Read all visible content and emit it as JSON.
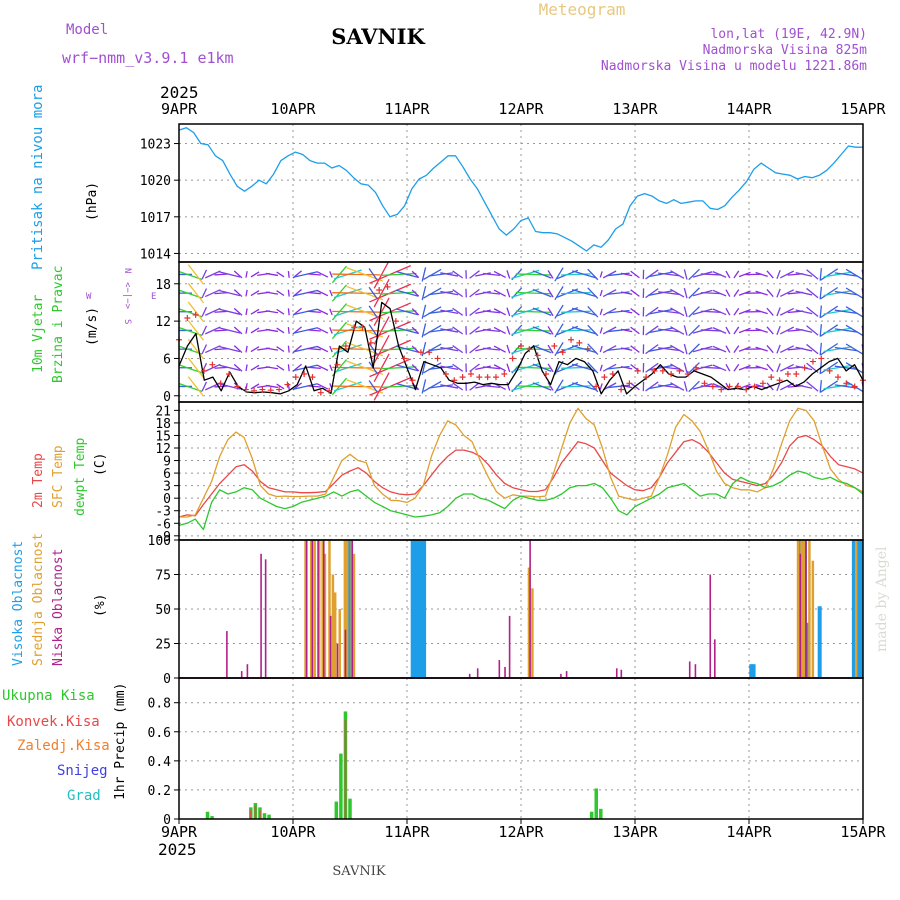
{
  "header": {
    "model_label": "Model",
    "model_value": "wrf−nmm_v3.9.1  e1km",
    "station": "SAVNIK",
    "product": "Meteogram",
    "lonlat": "lon,lat (19E, 42.9N)",
    "elevation": "Nadmorska Visina 825m",
    "model_elevation": "Nadmorska Visina u modelu 1221.86m",
    "year": "2025"
  },
  "footer": {
    "station": "SAVNIK",
    "year": "2025",
    "credit": "made by Angel"
  },
  "colors": {
    "pressure": "#1e9ee8",
    "wind_speed_model": "#000000",
    "wind_gust": "#e53030",
    "temp_2m": "#e84848",
    "temp_sfc": "#e0a030",
    "temp_dew": "#2ec82e",
    "cloud_high": "#1e9ee8",
    "cloud_mid": "#e0a030",
    "cloud_low": "#b0208a",
    "precip_total": "#2ec82e",
    "precip_conv": "#e84848",
    "precip_frz": "#f08030",
    "precip_snow": "#4040e0",
    "precip_grad": "#20c0c0"
  },
  "chart_data": [
    {
      "type": "line",
      "panel": "pressure",
      "ylabel": "Pritisak na nivou mora",
      "unit": "(hPa)",
      "yticks": [
        1014,
        1017,
        1020,
        1023
      ],
      "ylim": [
        1013.3,
        1024.6
      ],
      "series": [
        {
          "values": [
            1024.1,
            1024.3,
            1023.9,
            1023.0,
            1022.9,
            1022.0,
            1021.6,
            1020.5,
            1019.5,
            1019.1,
            1019.5,
            1020.0,
            1019.7,
            1020.5,
            1021.6,
            1022.0,
            1022.3,
            1022.1,
            1021.6,
            1021.4,
            1021.4,
            1021.0,
            1021.2,
            1020.8,
            1020.2,
            1019.7,
            1019.6,
            1019.0,
            1017.9,
            1017.0,
            1017.2,
            1017.9,
            1019.3,
            1020.1,
            1020.4,
            1021.0,
            1021.5,
            1022.0,
            1022.0,
            1021.1,
            1020.1,
            1019.3,
            1018.2,
            1017.1,
            1016.0,
            1015.5,
            1016.0,
            1016.7,
            1016.9,
            1015.8,
            1015.7,
            1015.7,
            1015.6,
            1015.3,
            1015.0,
            1014.6,
            1014.2,
            1014.7,
            1014.5,
            1015.1,
            1016.0,
            1016.4,
            1017.9,
            1018.7,
            1018.9,
            1018.7,
            1018.3,
            1018.1,
            1018.4,
            1018.1,
            1018.2,
            1018.3,
            1018.3,
            1017.7,
            1017.6,
            1017.9,
            1018.6,
            1019.2,
            1019.9,
            1020.9,
            1021.4,
            1021.0,
            1020.6,
            1020.5,
            1020.4,
            1020.1,
            1020.3,
            1020.2,
            1020.4,
            1020.8,
            1021.4,
            1022.1,
            1022.8,
            1022.7,
            1022.7
          ]
        }
      ]
    },
    {
      "type": "line",
      "panel": "wind",
      "ylabel_lines": [
        "10m Vjetar",
        "Brzina i Pravac"
      ],
      "unit": "(m/s)",
      "direction_labels": {
        "n": "N",
        "w": "W",
        "e": "E",
        "s": "S",
        "arrows": "<−|−>"
      },
      "yticks": [
        0,
        6,
        12,
        18
      ],
      "ylim": [
        -1,
        21.5
      ],
      "series": [
        {
          "values": [
            4.8,
            8.0,
            10.0,
            2.5,
            3.0,
            0.8,
            3.8,
            1.5,
            0.6,
            0.5,
            0.6,
            0.5,
            0.3,
            0.8,
            1.8,
            4.8,
            0.8,
            1.2,
            0.4,
            8.0,
            7.0,
            12.0,
            11.0,
            4.5,
            15.0,
            14.0,
            8.0,
            4.5,
            1.0,
            5.5,
            5.0,
            4.5,
            2.5,
            2.0,
            2.0,
            2.2,
            1.8,
            2.0,
            1.8,
            1.8,
            4.0,
            6.8,
            8.0,
            4.0,
            1.8,
            5.5,
            5.0,
            6.0,
            5.5,
            4.0,
            0.3,
            2.5,
            4.0,
            0.3,
            1.5,
            2.5,
            3.5,
            5.0,
            3.5,
            3.0,
            3.0,
            4.0,
            3.5,
            3.0,
            2.0,
            1.0,
            1.2,
            1.0,
            1.5,
            1.0,
            1.5,
            2.0,
            2.5,
            1.5,
            2.2,
            3.5,
            4.5,
            5.5,
            6.0,
            4.0,
            5.0,
            2.5
          ]
        },
        {
          "values": [
            9.0,
            12.5,
            13.0,
            4.0,
            5.0,
            2.0,
            3.5,
            1.5,
            1.0,
            0.8,
            1.0,
            0.9,
            1.0,
            1.8,
            3.0,
            3.5,
            3.0,
            0.5,
            0.8,
            5.0,
            8.0,
            11.0,
            11.0,
            8.5,
            17.0,
            17.5,
            12.0,
            6.0,
            2.5,
            7.0,
            7.0,
            6.0,
            3.5,
            2.5,
            3.0,
            3.5,
            3.0,
            3.0,
            3.0,
            3.5,
            6.0,
            8.0,
            7.5,
            6.5,
            3.5,
            8.0,
            7.0,
            9.0,
            8.5,
            7.5,
            1.5,
            3.0,
            3.5,
            1.0,
            2.0,
            4.0,
            3.0,
            4.0,
            4.0,
            3.5,
            4.0,
            3.5,
            4.5,
            2.0,
            1.5,
            1.0,
            1.5,
            1.5,
            1.0,
            1.5,
            2.0,
            3.0,
            2.5,
            3.5,
            3.5,
            4.5,
            5.5,
            6.0,
            4.0,
            3.0,
            2.0,
            1.5,
            2.5
          ]
        }
      ]
    },
    {
      "type": "line",
      "panel": "temperature",
      "ylabels": [
        "2m Temp",
        "SFC Temp",
        "dewpt Temp"
      ],
      "unit": "(C)",
      "yticks": [
        -9,
        -6,
        -3,
        0,
        3,
        6,
        9,
        12,
        15,
        18,
        21
      ],
      "ylim": [
        -10,
        23
      ],
      "series": [
        {
          "name": "2m Temp",
          "values": [
            -4.5,
            -4.0,
            -4.2,
            -1.5,
            1.0,
            3.5,
            5.5,
            7.5,
            8.0,
            6.5,
            4.0,
            2.5,
            2.0,
            1.5,
            1.5,
            1.3,
            1.3,
            1.4,
            1.6,
            3.5,
            5.5,
            6.5,
            7.3,
            6.0,
            4.0,
            2.5,
            1.5,
            1.0,
            0.8,
            1.0,
            3.0,
            5.5,
            8.0,
            10.0,
            11.5,
            11.5,
            11.0,
            10.0,
            8.0,
            5.5,
            3.5,
            2.5,
            2.0,
            1.6,
            1.6,
            2.0,
            5.0,
            8.5,
            11.0,
            13.5,
            13.0,
            12.0,
            9.0,
            6.0,
            4.5,
            3.0,
            2.0,
            1.8,
            2.5,
            5.0,
            8.5,
            11.0,
            13.5,
            14.0,
            13.0,
            11.0,
            8.5,
            6.0,
            4.5,
            4.0,
            3.5,
            3.0,
            3.5,
            5.5,
            8.5,
            12.5,
            14.5,
            15.0,
            14.0,
            12.5,
            10.0,
            8.0,
            7.5,
            7.0,
            6.0
          ]
        },
        {
          "name": "SFC Temp",
          "values": [
            -4.5,
            -4.5,
            -4.0,
            0.0,
            4.0,
            10.0,
            14.0,
            15.8,
            14.5,
            9.5,
            3.0,
            1.0,
            0.4,
            0.5,
            0.4,
            0.4,
            0.5,
            0.5,
            1.0,
            5.0,
            9.0,
            10.5,
            9.0,
            8.5,
            3.0,
            1.0,
            -0.5,
            -0.6,
            -1.0,
            0.0,
            3.0,
            10.0,
            15.0,
            18.5,
            17.5,
            15.0,
            13.5,
            9.0,
            5.0,
            1.5,
            0.0,
            0.8,
            0.5,
            0.5,
            0.3,
            0.5,
            6.0,
            12.0,
            18.0,
            21.5,
            19.0,
            17.5,
            12.0,
            5.0,
            0.5,
            0.0,
            -0.5,
            0.0,
            0.5,
            5.0,
            10.5,
            17.0,
            20.0,
            18.5,
            16.0,
            11.5,
            6.5,
            3.5,
            2.5,
            2.0,
            2.0,
            1.5,
            2.5,
            7.0,
            13.0,
            18.5,
            21.5,
            21.0,
            18.5,
            12.5,
            7.0,
            4.5,
            3.0,
            2.5,
            1.5
          ]
        },
        {
          "name": "dewpt Temp",
          "values": [
            -6.5,
            -6.0,
            -5.0,
            -7.5,
            -1.0,
            2.0,
            1.0,
            1.5,
            2.5,
            2.0,
            0.0,
            -1.0,
            -2.0,
            -2.5,
            -2.0,
            -1.0,
            -0.5,
            0.0,
            0.5,
            1.5,
            0.5,
            1.5,
            2.0,
            0.5,
            -1.0,
            -2.0,
            -3.0,
            -3.5,
            -4.0,
            -4.5,
            -4.3,
            -4.0,
            -3.5,
            -2.0,
            0.0,
            1.0,
            1.0,
            0.0,
            -0.5,
            -1.5,
            -2.5,
            -0.5,
            0.5,
            0.0,
            -0.5,
            -0.5,
            0.0,
            1.0,
            2.5,
            3.0,
            3.0,
            3.5,
            2.5,
            0.0,
            -3.0,
            -4.0,
            -2.0,
            -1.0,
            0.0,
            1.0,
            2.5,
            3.0,
            3.5,
            2.0,
            0.5,
            1.0,
            1.0,
            0.0,
            3.5,
            5.0,
            4.0,
            3.5,
            2.5,
            3.0,
            4.0,
            5.5,
            6.5,
            6.0,
            5.0,
            4.5,
            5.0,
            4.0,
            3.5,
            2.5,
            1.0
          ]
        }
      ]
    },
    {
      "type": "bar",
      "panel": "clouds",
      "ylabels": [
        "Visoka Oblacnost",
        "Srednja Oblacnost",
        "Niska Oblacnost"
      ],
      "unit": "(%)",
      "yticks": [
        0,
        25,
        50,
        75,
        100
      ],
      "ylim": [
        0,
        100
      ],
      "series": [
        {
          "name": "Visoka Oblacnost",
          "bars": [
            [
              1.485,
              100
            ],
            [
              1.505,
              100
            ],
            [
              2.05,
              100
            ],
            [
              2.07,
              100
            ],
            [
              2.09,
              100
            ],
            [
              2.11,
              100
            ],
            [
              2.13,
              100
            ],
            [
              2.15,
              100
            ],
            [
              5.02,
              10
            ],
            [
              5.04,
              10
            ],
            [
              5.45,
              100
            ],
            [
              5.47,
              55
            ],
            [
              5.49,
              100
            ],
            [
              5.51,
              40
            ],
            [
              5.62,
              52
            ],
            [
              5.92,
              100
            ],
            [
              5.94,
              100
            ],
            [
              5.96,
              100
            ],
            [
              5.98,
              100
            ]
          ]
        },
        {
          "name": "Srednja Oblacnost",
          "bars": [
            [
              1.11,
              100
            ],
            [
              1.16,
              100
            ],
            [
              1.19,
              100
            ],
            [
              1.23,
              100
            ],
            [
              1.26,
              100
            ],
            [
              1.28,
              90
            ],
            [
              1.32,
              100
            ],
            [
              1.35,
              75
            ],
            [
              1.37,
              62
            ],
            [
              1.41,
              50
            ],
            [
              1.455,
              100
            ],
            [
              1.475,
              100
            ],
            [
              1.515,
              100
            ],
            [
              1.535,
              90
            ],
            [
              3.07,
              80
            ],
            [
              3.1,
              65
            ],
            [
              5.43,
              100
            ],
            [
              5.46,
              100
            ],
            [
              5.48,
              100
            ],
            [
              5.53,
              100
            ],
            [
              5.56,
              85
            ],
            [
              5.94,
              100
            ]
          ]
        },
        {
          "name": "Niska Oblacnost",
          "bars": [
            [
              0.42,
              34
            ],
            [
              0.55,
              5
            ],
            [
              0.6,
              10
            ],
            [
              0.72,
              90
            ],
            [
              0.76,
              86
            ],
            [
              1.12,
              100
            ],
            [
              1.17,
              100
            ],
            [
              1.22,
              100
            ],
            [
              1.27,
              100
            ],
            [
              1.33,
              45
            ],
            [
              1.39,
              25
            ],
            [
              1.46,
              35
            ],
            [
              1.52,
              100
            ],
            [
              2.55,
              3
            ],
            [
              2.62,
              7
            ],
            [
              2.81,
              13
            ],
            [
              2.86,
              8
            ],
            [
              2.9,
              45
            ],
            [
              3.08,
              100
            ],
            [
              3.35,
              3
            ],
            [
              3.4,
              5
            ],
            [
              3.84,
              7
            ],
            [
              3.88,
              6
            ],
            [
              4.48,
              12
            ],
            [
              4.53,
              10
            ],
            [
              4.66,
              75
            ],
            [
              4.7,
              28
            ],
            [
              5.45,
              90
            ],
            [
              5.5,
              100
            ]
          ]
        }
      ]
    },
    {
      "type": "bar",
      "panel": "precipitation",
      "legend": [
        "Ukupna Kisa",
        "Konvek.Kisa",
        "Zaledj.Kisa",
        "Snijeg",
        "Grad"
      ],
      "ylabel": "1hr Precip (mm)",
      "yticks": [
        0,
        0.2,
        0.4,
        0.6,
        0.8
      ],
      "ylim": [
        0,
        0.97
      ],
      "series": [
        {
          "name": "Ukupna Kisa",
          "bars": [
            [
              0.25,
              0.05
            ],
            [
              0.29,
              0.02
            ],
            [
              0.63,
              0.08
            ],
            [
              0.67,
              0.11
            ],
            [
              0.71,
              0.08
            ],
            [
              0.75,
              0.04
            ],
            [
              0.79,
              0.03
            ],
            [
              1.38,
              0.12
            ],
            [
              1.42,
              0.45
            ],
            [
              1.46,
              0.74
            ],
            [
              1.5,
              0.14
            ],
            [
              3.62,
              0.05
            ],
            [
              3.66,
              0.21
            ],
            [
              3.7,
              0.07
            ]
          ]
        },
        {
          "name": "Konvek.Kisa",
          "bars": [
            [
              0.63,
              0.06
            ],
            [
              0.67,
              0.09
            ],
            [
              0.71,
              0.06
            ],
            [
              1.46,
              0.68
            ]
          ]
        }
      ]
    }
  ],
  "x_axis": {
    "tick_labels": [
      "9APR",
      "10APR",
      "11APR",
      "12APR",
      "13APR",
      "14APR",
      "15APR"
    ]
  }
}
